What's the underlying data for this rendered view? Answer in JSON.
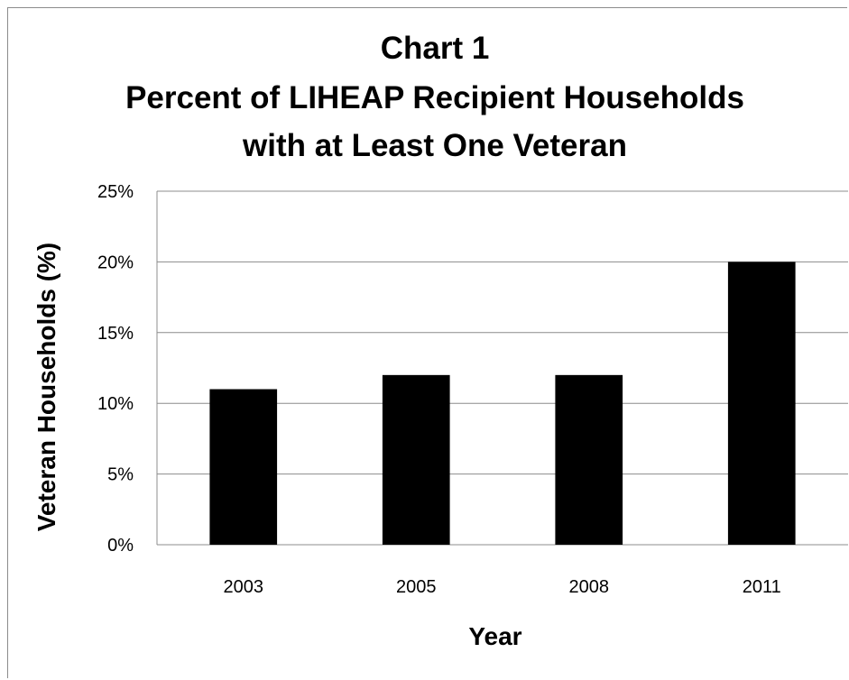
{
  "chart_data": {
    "type": "bar",
    "title_lines": [
      "Chart 1",
      "Percent of LIHEAP Recipient Households",
      "with at Least One Veteran"
    ],
    "xlabel": "Year",
    "ylabel": "Veteran Households (%)",
    "categories": [
      "2003",
      "2005",
      "2008",
      "2011"
    ],
    "values": [
      11,
      12,
      12,
      20
    ],
    "ylim": [
      0,
      25
    ],
    "yticks": [
      0,
      5,
      10,
      15,
      20,
      25
    ],
    "ytick_labels": [
      "0%",
      "5%",
      "10%",
      "15%",
      "20%",
      "25%"
    ],
    "bar_color": "#000000",
    "grid": true,
    "legend": "none"
  }
}
